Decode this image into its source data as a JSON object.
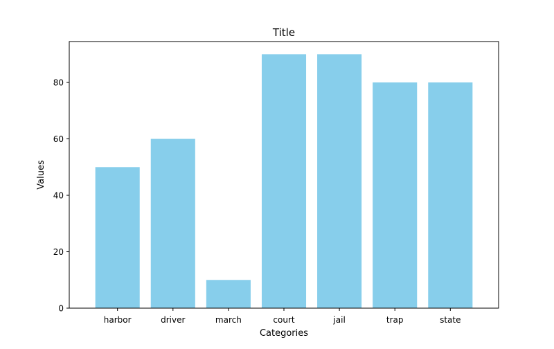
{
  "chart_data": {
    "type": "bar",
    "title": "Title",
    "xlabel": "Categories",
    "ylabel": "Values",
    "categories": [
      "harbor",
      "driver",
      "march",
      "court",
      "jail",
      "trap",
      "state"
    ],
    "values": [
      50,
      60,
      10,
      90,
      90,
      80,
      80
    ],
    "ylim": [
      0,
      94.5
    ],
    "yticks": [
      0,
      20,
      40,
      60,
      80
    ],
    "bar_color": "#87ceeb",
    "grid": false,
    "legend": "none"
  }
}
